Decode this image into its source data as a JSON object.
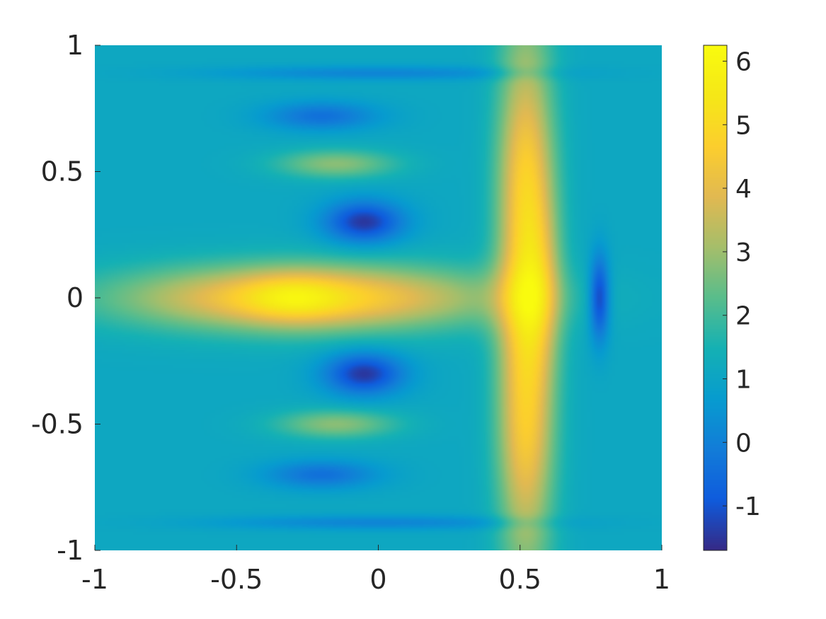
{
  "chart_data": {
    "type": "heatmap",
    "title": "",
    "xlabel": "",
    "ylabel": "",
    "xlim": [
      -1,
      1
    ],
    "ylim": [
      -1,
      1
    ],
    "x_ticks": [
      -1,
      -0.5,
      0,
      0.5,
      1
    ],
    "x_tick_labels": [
      "-1",
      "-0.5",
      "0",
      "0.5",
      "1"
    ],
    "y_ticks": [
      -1,
      -0.5,
      0,
      0.5,
      1
    ],
    "y_tick_labels": [
      "-1",
      "-0.5",
      "0",
      "0.5",
      "1"
    ],
    "colormap": "parula",
    "colorbar": {
      "range": [
        -1.7,
        6.25
      ],
      "ticks": [
        -1,
        0,
        1,
        2,
        3,
        4,
        5,
        6
      ],
      "tick_labels": [
        "-1",
        "0",
        "1",
        "2",
        "3",
        "4",
        "5",
        "6"
      ],
      "placement": "right"
    },
    "background_value": 1.1,
    "field_features": [
      {
        "shape": "gaussian",
        "x": 0.52,
        "y": 0.0,
        "sx": 0.07,
        "sy": 0.75,
        "value": 3.9
      },
      {
        "shape": "gaussian",
        "x": 0.58,
        "y": 0.05,
        "sx": 0.05,
        "sy": 0.25,
        "value": 1.0
      },
      {
        "shape": "gaussian",
        "x": 0.52,
        "y": 0.55,
        "sx": 0.07,
        "sy": 0.2,
        "value": 0.5
      },
      {
        "shape": "gaussian",
        "x": 0.52,
        "y": -0.6,
        "sx": 0.07,
        "sy": 0.18,
        "value": 0.5
      },
      {
        "shape": "gaussian",
        "x": -0.25,
        "y": 0.0,
        "sx": 0.45,
        "sy": 0.09,
        "value": 3.9
      },
      {
        "shape": "gaussian",
        "x": -0.3,
        "y": 0.0,
        "sx": 0.12,
        "sy": 0.07,
        "value": 1.1
      },
      {
        "shape": "gaussian",
        "x": -0.05,
        "y": 0.3,
        "sx": 0.1,
        "sy": 0.06,
        "value": -2.6
      },
      {
        "shape": "gaussian",
        "x": -0.05,
        "y": -0.3,
        "sx": 0.1,
        "sy": 0.06,
        "value": -2.6
      },
      {
        "shape": "gaussian",
        "x": -0.15,
        "y": 0.53,
        "sx": 0.15,
        "sy": 0.04,
        "value": 1.7
      },
      {
        "shape": "gaussian",
        "x": -0.15,
        "y": -0.5,
        "sx": 0.15,
        "sy": 0.04,
        "value": 1.7
      },
      {
        "shape": "gaussian",
        "x": -0.2,
        "y": 0.72,
        "sx": 0.14,
        "sy": 0.04,
        "value": -1.5
      },
      {
        "shape": "gaussian",
        "x": -0.2,
        "y": -0.7,
        "sx": 0.14,
        "sy": 0.04,
        "value": -1.5
      },
      {
        "shape": "gaussian",
        "x": 0.78,
        "y": 0.0,
        "sx": 0.025,
        "sy": 0.12,
        "value": -2.5
      },
      {
        "shape": "gaussian",
        "x": 0.0,
        "y": 0.89,
        "sx": 0.4,
        "sy": 0.02,
        "value": -1.0
      },
      {
        "shape": "gaussian",
        "x": 0.0,
        "y": -0.89,
        "sx": 0.4,
        "sy": 0.02,
        "value": -1.0
      }
    ]
  }
}
